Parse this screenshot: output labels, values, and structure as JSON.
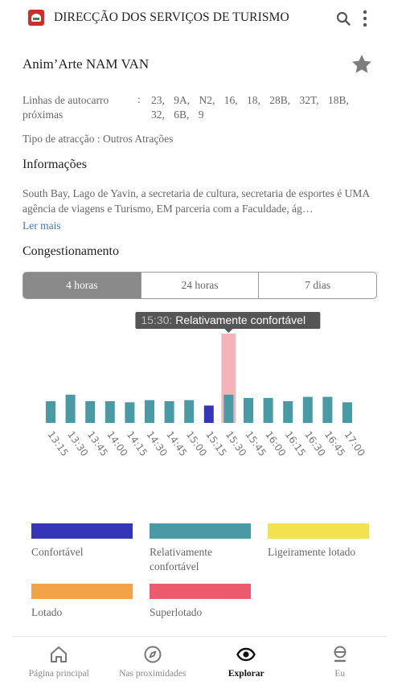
{
  "header": {
    "org_name": "DIRECÇÃO DOS SERVIÇOS DE TURISMO",
    "search_icon": "search-icon",
    "more_icon": "more-vertical-icon"
  },
  "attraction": {
    "title": "Anim’Arte NAM VAN",
    "favorite_icon": "star-icon",
    "bus_label": "Linhas de autocarro próximas",
    "bus_colon": ":",
    "bus_lines": "23, 9A, N2, 16, 18, 28B, 32T, 18B, 32, 6B, 9",
    "type_text": "Tipo de atracção : Outros Atrações"
  },
  "info": {
    "title": "Informações",
    "text": "South Bay, Lago de Yavin, a secretaria de cultura, secretaria de esportes é UMA agência de viagens e Turismo, EM parceria com a Faculdade, ág…",
    "read_more": "Ler mais"
  },
  "congestion": {
    "title": "Congestionamento",
    "tabs": [
      "4 horas",
      "24 horas",
      "7 dias"
    ],
    "active_tab": 0
  },
  "chart_data": {
    "type": "bar",
    "categories": [
      "13:15",
      "13:30",
      "13:45",
      "14:00",
      "14:15",
      "14:30",
      "14:45",
      "15:00",
      "15:15",
      "15:30",
      "15:45",
      "16:00",
      "16:15",
      "16:30",
      "16:45",
      "17:00"
    ],
    "values": [
      2,
      2.6,
      2,
      2,
      1.9,
      2.1,
      2,
      2.1,
      1.6,
      2.6,
      2.3,
      2.3,
      2,
      2.4,
      2.4,
      1.9
    ],
    "levels": [
      "relatively",
      "relatively",
      "relatively",
      "relatively",
      "relatively",
      "relatively",
      "relatively",
      "relatively",
      "comfortable",
      "relatively",
      "relatively",
      "relatively",
      "relatively",
      "relatively",
      "relatively",
      "relatively"
    ],
    "selected_index": 9,
    "tooltip_time": "15:30:",
    "tooltip_text": "Relativamente confortável",
    "colors": {
      "comfortable": "#3535b8",
      "relatively": "#4a9aa5",
      "slightly": "#f2e24d",
      "crowded": "#f2a347",
      "overcrowded": "#ec5a6e",
      "highlight": "#f3b4b8"
    }
  },
  "legend": [
    {
      "label": "Confortável",
      "color": "#3535b8"
    },
    {
      "label": "Relativamente confortável",
      "color": "#4a9aa5"
    },
    {
      "label": "Ligeiramente lotado",
      "color": "#f2e24d"
    },
    {
      "label": "Lotado",
      "color": "#f2a347"
    },
    {
      "label": "Superlotado",
      "color": "#ec5a6e"
    }
  ],
  "nav": {
    "items": [
      {
        "label": "Página principal",
        "icon": "home-icon"
      },
      {
        "label": "Nas proximidades",
        "icon": "compass-icon"
      },
      {
        "label": "Explorar",
        "icon": "eye-icon"
      },
      {
        "label": "Eu",
        "icon": "user-icon"
      }
    ],
    "active": 2
  }
}
